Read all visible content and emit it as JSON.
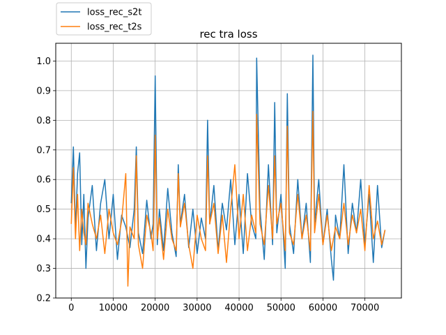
{
  "chart_data": {
    "type": "line",
    "title": "rec tra loss",
    "xlabel": "",
    "ylabel": "",
    "xlim": [
      -3700,
      78700
    ],
    "ylim": [
      0.2,
      1.06
    ],
    "xticks": [
      0,
      10000,
      20000,
      30000,
      40000,
      50000,
      60000,
      70000
    ],
    "xtick_labels": [
      "0",
      "10000",
      "20000",
      "30000",
      "40000",
      "50000",
      "60000",
      "70000"
    ],
    "yticks": [
      0.2,
      0.3,
      0.4,
      0.5,
      0.6,
      0.7,
      0.8,
      0.9,
      1.0
    ],
    "ytick_labels": [
      "0.2",
      "0.3",
      "0.4",
      "0.5",
      "0.6",
      "0.7",
      "0.8",
      "0.9",
      "1.0"
    ],
    "grid": true,
    "legend_position": "upper-left-outside",
    "series": [
      {
        "name": "loss_rec_s2t",
        "color": "#1f77b4",
        "x": [
          0,
          500,
          1000,
          1500,
          2000,
          2500,
          3000,
          3500,
          4000,
          5000,
          6000,
          7000,
          8000,
          9000,
          10000,
          11000,
          12000,
          13000,
          14000,
          15000,
          15500,
          16000,
          17000,
          18000,
          19000,
          19500,
          20000,
          20500,
          21000,
          22000,
          23000,
          24000,
          25000,
          25500,
          26000,
          27000,
          28000,
          29000,
          30000,
          31000,
          32000,
          32500,
          33000,
          34000,
          35000,
          36000,
          37000,
          38000,
          39000,
          40000,
          41000,
          42000,
          43000,
          44000,
          44200,
          45000,
          46000,
          47000,
          48000,
          48500,
          49000,
          50000,
          51000,
          51500,
          52000,
          53000,
          54000,
          55000,
          56000,
          57000,
          57600,
          58000,
          59000,
          60000,
          61000,
          62000,
          62500,
          63000,
          64000,
          65000,
          66000,
          67000,
          68000,
          69000,
          70000,
          71000,
          72000,
          73000,
          74000,
          74800
        ],
        "values": [
          0.52,
          0.71,
          0.43,
          0.62,
          0.69,
          0.38,
          0.55,
          0.3,
          0.47,
          0.58,
          0.36,
          0.52,
          0.6,
          0.4,
          0.55,
          0.33,
          0.48,
          0.44,
          0.37,
          0.5,
          0.71,
          0.42,
          0.35,
          0.53,
          0.4,
          0.45,
          0.95,
          0.38,
          0.5,
          0.36,
          0.57,
          0.42,
          0.34,
          0.65,
          0.45,
          0.55,
          0.37,
          0.5,
          0.35,
          0.47,
          0.4,
          0.8,
          0.45,
          0.58,
          0.36,
          0.52,
          0.43,
          0.6,
          0.38,
          0.55,
          0.35,
          0.62,
          0.45,
          0.4,
          1.01,
          0.5,
          0.33,
          0.65,
          0.38,
          0.86,
          0.42,
          0.55,
          0.3,
          0.89,
          0.45,
          0.35,
          0.6,
          0.4,
          0.52,
          0.32,
          1.02,
          0.45,
          0.6,
          0.38,
          0.5,
          0.33,
          0.26,
          0.48,
          0.4,
          0.65,
          0.35,
          0.52,
          0.42,
          0.6,
          0.38,
          0.55,
          0.32,
          0.58,
          0.37,
          0.43
        ]
      },
      {
        "name": "loss_rec_t2s",
        "color": "#ff7f0e",
        "x": [
          0,
          500,
          1000,
          1500,
          2000,
          2500,
          3000,
          3500,
          4000,
          5000,
          6000,
          7000,
          8000,
          9000,
          10000,
          11000,
          12000,
          13000,
          13500,
          14000,
          15000,
          15500,
          16000,
          17000,
          18000,
          19000,
          19500,
          20000,
          20500,
          21000,
          22000,
          23000,
          24000,
          25000,
          25500,
          26000,
          27000,
          28000,
          29000,
          30000,
          31000,
          32000,
          32500,
          33000,
          34000,
          35000,
          36000,
          37000,
          38000,
          39000,
          40000,
          41000,
          42000,
          43000,
          44000,
          44200,
          45000,
          46000,
          47000,
          48000,
          48500,
          49000,
          50000,
          51000,
          51500,
          52000,
          53000,
          54000,
          55000,
          56000,
          57000,
          57600,
          58000,
          59000,
          60000,
          61000,
          62000,
          63000,
          64000,
          65000,
          66000,
          67000,
          68000,
          69000,
          70000,
          71000,
          72000,
          73000,
          74000,
          74800
        ],
        "values": [
          0.45,
          0.64,
          0.4,
          0.55,
          0.36,
          0.5,
          0.42,
          0.38,
          0.52,
          0.45,
          0.4,
          0.48,
          0.35,
          0.5,
          0.42,
          0.38,
          0.46,
          0.62,
          0.24,
          0.44,
          0.4,
          0.68,
          0.38,
          0.3,
          0.48,
          0.42,
          0.36,
          0.75,
          0.4,
          0.47,
          0.33,
          0.5,
          0.4,
          0.36,
          0.62,
          0.44,
          0.52,
          0.38,
          0.3,
          0.48,
          0.4,
          0.36,
          0.68,
          0.45,
          0.52,
          0.35,
          0.48,
          0.32,
          0.5,
          0.65,
          0.4,
          0.55,
          0.36,
          0.48,
          0.42,
          0.82,
          0.45,
          0.38,
          0.58,
          0.4,
          0.68,
          0.45,
          0.52,
          0.36,
          0.78,
          0.42,
          0.38,
          0.55,
          0.4,
          0.48,
          0.36,
          0.83,
          0.42,
          0.55,
          0.38,
          0.48,
          0.36,
          0.44,
          0.4,
          0.52,
          0.38,
          0.48,
          0.42,
          0.5,
          0.36,
          0.58,
          0.4,
          0.46,
          0.38,
          0.43
        ]
      }
    ]
  }
}
